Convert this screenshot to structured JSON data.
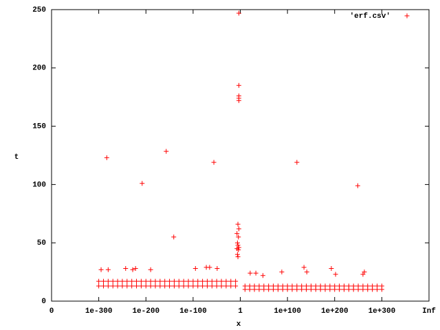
{
  "chart_data": {
    "type": "scatter",
    "xlabel": "x",
    "ylabel": "t",
    "xlim": [
      0,
      8
    ],
    "ylim": [
      0,
      250
    ],
    "xticks": [
      0,
      {
        "value": 1,
        "label": "1e-300"
      },
      {
        "value": 2,
        "label": "1e-200"
      },
      {
        "value": 3,
        "label": "1e-100"
      },
      {
        "value": 4,
        "label": "1"
      },
      {
        "value": 5,
        "label": "1e+100"
      },
      {
        "value": 6,
        "label": "1e+200"
      },
      {
        "value": 7,
        "label": "1e+300"
      },
      {
        "value": 8,
        "label": "Inf"
      }
    ],
    "yticks": [
      0,
      50,
      100,
      150,
      200,
      250
    ],
    "legend": "top-right",
    "marker": "+",
    "series": [
      {
        "name": "'erf.csv'",
        "color": "#ff0000",
        "x": [
          1.17,
          1.92,
          2.43,
          2.59,
          3.44,
          3.97,
          3.97,
          3.97,
          3.97,
          3.97,
          3.95,
          3.97,
          3.93,
          3.96,
          3.94,
          3.95,
          3.97,
          3.93,
          3.96,
          3.94,
          3.95,
          5.2,
          6.49,
          1.05,
          1.2,
          1.57,
          1.72,
          1.78,
          2.1,
          3.05,
          3.28,
          3.35,
          3.51,
          4.21,
          4.33,
          4.48,
          4.88,
          5.35,
          5.41,
          5.93,
          6.02,
          6.6,
          6.63,
          1,
          1.1,
          1.2,
          1.3,
          1.4,
          1.5,
          1.6,
          1.7,
          1.8,
          1.9,
          2,
          2.1,
          2.2,
          2.3,
          2.4,
          2.5,
          2.6,
          2.7,
          2.8,
          2.9,
          3,
          3.1,
          3.2,
          3.3,
          3.4,
          3.5,
          3.6,
          3.7,
          3.8,
          3.9,
          1,
          1.1,
          1.2,
          1.3,
          1.4,
          1.5,
          1.6,
          1.7,
          1.8,
          1.9,
          2,
          2.1,
          2.2,
          2.3,
          2.4,
          2.5,
          2.6,
          2.7,
          2.8,
          2.9,
          3,
          3.1,
          3.2,
          3.3,
          3.4,
          3.5,
          3.6,
          3.7,
          3.8,
          3.9,
          4.1,
          4.2,
          4.3,
          4.4,
          4.5,
          4.6,
          4.7,
          4.8,
          4.9,
          5,
          5.1,
          5.2,
          5.3,
          5.4,
          5.5,
          5.6,
          5.7,
          5.8,
          5.9,
          6,
          6.1,
          6.2,
          6.3,
          6.4,
          6.5,
          6.6,
          6.7,
          6.8,
          6.9,
          7,
          4.1,
          4.2,
          4.3,
          4.4,
          4.5,
          4.6,
          4.7,
          4.8,
          4.9,
          5,
          5.1,
          5.2,
          5.3,
          5.4,
          5.5,
          5.6,
          5.7,
          5.8,
          5.9,
          6,
          6.1,
          6.2,
          6.3,
          6.4,
          6.5,
          6.6,
          6.7,
          6.8,
          6.9,
          7
        ],
        "values": [
          123,
          101,
          128.5,
          55,
          119,
          247,
          185,
          176,
          174,
          172,
          66,
          62,
          58,
          55,
          50,
          48,
          46,
          45,
          44,
          40,
          38,
          119,
          99,
          27,
          27,
          28,
          27,
          28,
          27,
          28,
          29,
          29,
          28,
          24,
          24,
          22,
          25,
          29,
          25,
          28,
          23,
          23,
          25,
          13,
          13,
          13,
          13,
          13,
          13,
          13,
          13,
          13,
          13,
          13,
          13,
          13,
          13,
          13,
          13,
          13,
          13,
          13,
          13,
          13,
          13,
          13,
          13,
          13,
          13,
          13,
          13,
          13,
          13,
          17,
          17,
          17,
          17,
          17,
          17,
          17,
          17,
          17,
          17,
          17,
          17,
          17,
          17,
          17,
          17,
          17,
          17,
          17,
          17,
          17,
          17,
          17,
          17,
          17,
          17,
          17,
          17,
          17,
          17,
          10,
          10,
          10,
          10,
          10,
          10,
          10,
          10,
          10,
          10,
          10,
          10,
          10,
          10,
          10,
          10,
          10,
          10,
          10,
          10,
          10,
          10,
          10,
          10,
          10,
          10,
          10,
          10,
          10,
          10,
          13,
          13,
          13,
          13,
          13,
          13,
          13,
          13,
          13,
          13,
          13,
          13,
          13,
          13,
          13,
          13,
          13,
          13,
          13,
          13,
          13,
          13,
          13,
          13,
          13,
          13,
          13,
          13,
          13,
          13
        ]
      }
    ]
  }
}
